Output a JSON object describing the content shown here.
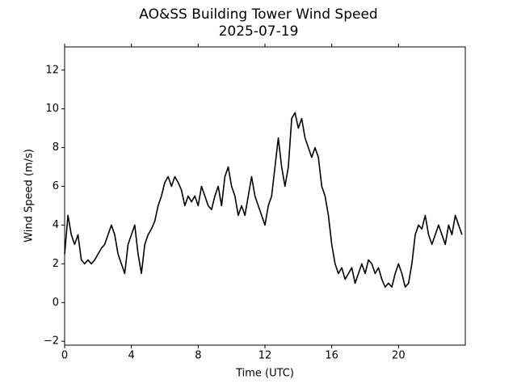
{
  "chart_data": {
    "type": "line",
    "title": "AO&SS Building Tower Wind Speed",
    "subtitle": "2025-07-19",
    "x_label": "Time (UTC)",
    "y_label": "Wind Speed (m/s)",
    "xlim": [
      0,
      24
    ],
    "ylim": [
      -2.2,
      13.2
    ],
    "xticks": [
      0,
      4,
      8,
      12,
      16,
      20
    ],
    "yticks": [
      {
        "value": -2,
        "label": "−2"
      },
      0,
      2,
      4,
      6,
      8,
      10,
      12
    ],
    "grid": false,
    "x": [
      0,
      0.2,
      0.4,
      0.6,
      0.8,
      1,
      1.2,
      1.4,
      1.6,
      1.8,
      2,
      2.2,
      2.4,
      2.6,
      2.8,
      3,
      3.2,
      3.4,
      3.6,
      3.8,
      4,
      4.2,
      4.4,
      4.6,
      4.8,
      5,
      5.2,
      5.4,
      5.6,
      5.8,
      6,
      6.2,
      6.4,
      6.6,
      6.8,
      7,
      7.2,
      7.4,
      7.6,
      7.8,
      8,
      8.2,
      8.4,
      8.6,
      8.8,
      9,
      9.2,
      9.4,
      9.6,
      9.8,
      10,
      10.2,
      10.4,
      10.6,
      10.8,
      11,
      11.2,
      11.4,
      11.6,
      11.8,
      12,
      12.2,
      12.4,
      12.6,
      12.8,
      13,
      13.2,
      13.4,
      13.6,
      13.8,
      14,
      14.2,
      14.4,
      14.6,
      14.8,
      15,
      15.2,
      15.4,
      15.6,
      15.8,
      16,
      16.2,
      16.4,
      16.6,
      16.8,
      17,
      17.2,
      17.4,
      17.6,
      17.8,
      18,
      18.2,
      18.4,
      18.6,
      18.8,
      19,
      19.2,
      19.4,
      19.6,
      19.8,
      20,
      20.2,
      20.4,
      20.6,
      20.8,
      21,
      21.2,
      21.4,
      21.6,
      21.8,
      22,
      22.2,
      22.4,
      22.6,
      22.8,
      23,
      23.2,
      23.4,
      23.6,
      23.8
    ],
    "series": [
      {
        "color": "#000000",
        "values": [
          2.5,
          4.5,
          3.5,
          3.0,
          3.5,
          2.2,
          2.0,
          2.2,
          2.0,
          2.2,
          2.5,
          2.8,
          3.0,
          3.5,
          4.0,
          3.5,
          2.5,
          2.0,
          1.5,
          3.0,
          3.5,
          4.0,
          2.5,
          1.5,
          3.0,
          3.5,
          3.8,
          4.2,
          5.0,
          5.5,
          6.2,
          6.5,
          6.0,
          6.5,
          6.2,
          5.8,
          5.0,
          5.5,
          5.2,
          5.5,
          5.0,
          6.0,
          5.5,
          5.0,
          4.8,
          5.5,
          6.0,
          5.0,
          6.5,
          7.0,
          6.0,
          5.5,
          4.5,
          5.0,
          4.5,
          5.5,
          6.5,
          5.5,
          5.0,
          4.5,
          4.0,
          5.0,
          5.5,
          7.0,
          8.5,
          7.0,
          6.0,
          7.0,
          9.5,
          9.8,
          9.0,
          9.5,
          8.5,
          8.0,
          7.5,
          8.0,
          7.5,
          6.0,
          5.5,
          4.5,
          3.0,
          2.0,
          1.5,
          1.8,
          1.2,
          1.5,
          1.8,
          1.0,
          1.5,
          2.0,
          1.5,
          2.2,
          2.0,
          1.5,
          1.8,
          1.2,
          0.8,
          1.0,
          0.8,
          1.5,
          2.0,
          1.5,
          0.8,
          1.0,
          2.0,
          3.5,
          4.0,
          3.8,
          4.5,
          3.5,
          3.0,
          3.5,
          4.0,
          3.5,
          3.0,
          4.0,
          3.5,
          4.5,
          4.0,
          3.5
        ]
      }
    ]
  }
}
